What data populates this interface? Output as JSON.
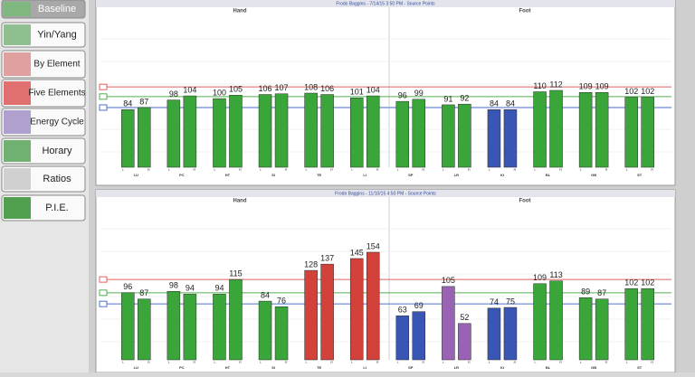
{
  "sidebar": [
    "Baseline",
    "Yin/Yang",
    "By Element",
    "Five Elements",
    "Energy Cycle",
    "Horary",
    "Ratios",
    "P.I.E."
  ],
  "chart_data": [
    {
      "type": "bar",
      "title": "Frodo Baggins - 7/14/15 3:50 PM - Source Points",
      "sections": [
        "Hand",
        "Foot"
      ],
      "categories": [
        "LU",
        "PC",
        "HT",
        "SI",
        "TE",
        "LI",
        "SP",
        "LR",
        "KI",
        "BL",
        "GB",
        "ST"
      ],
      "colors": [
        "#3aa63a",
        "#3aa63a",
        "#3aa63a",
        "#3aa63a",
        "#3aa63a",
        "#3aa63a",
        "#3aa63a",
        "#3aa63a",
        "#3a56b4",
        "#3aa63a",
        "#3aa63a",
        "#3aa63a"
      ],
      "series": [
        {
          "name": "L",
          "values": [
            84,
            98,
            100,
            106,
            108,
            101,
            96,
            91,
            84,
            110,
            109,
            102
          ]
        },
        {
          "name": "R",
          "values": [
            87,
            104,
            105,
            107,
            106,
            104,
            99,
            92,
            84,
            112,
            109,
            102
          ]
        }
      ],
      "reference_lines": [
        {
          "value": 117,
          "color": "#e06060"
        },
        {
          "value": 103,
          "color": "#50b050"
        },
        {
          "value": 87,
          "color": "#5070d0"
        }
      ],
      "ylim": [
        0,
        220
      ]
    },
    {
      "type": "bar",
      "title": "Frodo Baggins - 11/10/15 4:50 PM - Source Points",
      "sections": [
        "Hand",
        "Foot"
      ],
      "categories": [
        "LU",
        "PC",
        "HT",
        "SI",
        "TE",
        "LI",
        "SP",
        "LR",
        "KI",
        "BL",
        "GB",
        "ST"
      ],
      "colors": [
        "#3aa63a",
        "#3aa63a",
        "#3aa63a",
        "#3aa63a",
        "#d2413a",
        "#d2413a",
        "#3a56b4",
        "#9a62b4",
        "#3a56b4",
        "#3aa63a",
        "#3aa63a",
        "#3aa63a"
      ],
      "series": [
        {
          "name": "L",
          "values": [
            96,
            98,
            94,
            84,
            128,
            145,
            63,
            105,
            74,
            109,
            89,
            102
          ]
        },
        {
          "name": "R",
          "values": [
            87,
            94,
            115,
            76,
            137,
            154,
            69,
            52,
            75,
            113,
            87,
            102
          ]
        }
      ],
      "reference_lines": [
        {
          "value": 115,
          "color": "#e06060"
        },
        {
          "value": 96,
          "color": "#50b050"
        },
        {
          "value": 80,
          "color": "#5070d0"
        }
      ],
      "ylim": [
        0,
        220
      ]
    }
  ]
}
